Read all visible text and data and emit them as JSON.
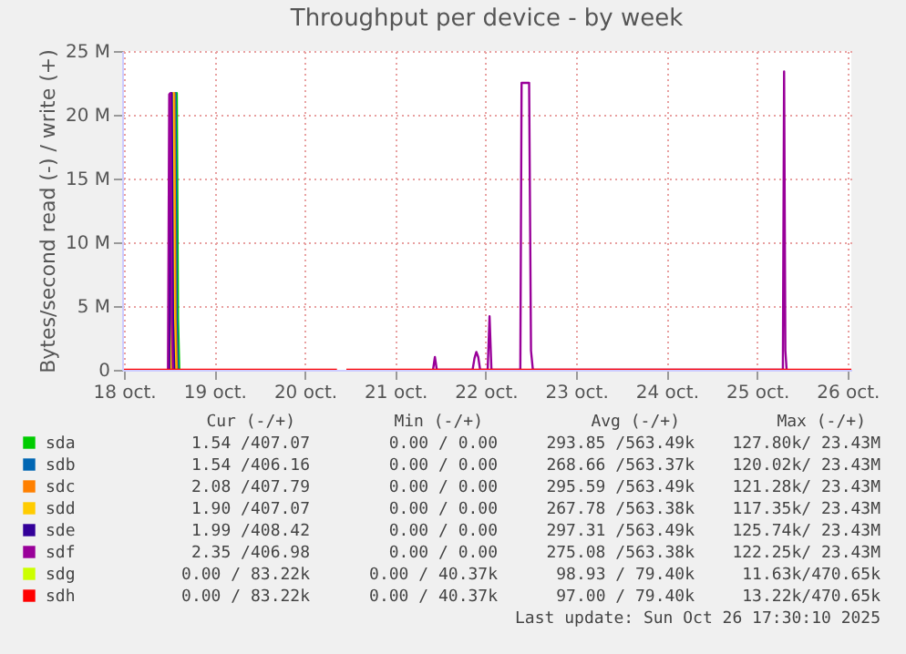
{
  "chart_data": {
    "type": "line",
    "title": "Throughput per device - by week",
    "ylabel": "Bytes/second read (-) / write (+)",
    "x": [
      "2025-10-18T00:00",
      "2025-10-18T11:40",
      "2025-10-18T12:00",
      "2025-10-18T12:20",
      "2025-10-18T12:40",
      "2025-10-18T13:00",
      "2025-10-18T13:20",
      "2025-10-18T13:40",
      "2025-10-18T14:00",
      "2025-10-18T14:20",
      "2025-10-18T14:40",
      "2025-10-20T08:30",
      "2025-10-20T09:30",
      "2025-10-20T11:00",
      "2025-10-21T10:00",
      "2025-10-21T10:30",
      "2025-10-21T11:00",
      "2025-10-21T20:30",
      "2025-10-21T21:00",
      "2025-10-21T21:30",
      "2025-10-21T22:00",
      "2025-10-21T22:30",
      "2025-10-22T00:30",
      "2025-10-22T01:00",
      "2025-10-22T01:30",
      "2025-10-22T09:10",
      "2025-10-22T09:30",
      "2025-10-22T11:30",
      "2025-10-22T12:00",
      "2025-10-22T12:30",
      "2025-10-25T06:50",
      "2025-10-25T07:10",
      "2025-10-25T07:30",
      "2025-10-25T07:50",
      "2025-10-26T01:00"
    ],
    "series": [
      {
        "name": "sda",
        "color": "#00cc00",
        "values": [
          null,
          null,
          null,
          null,
          null,
          null,
          0,
          21600000,
          21700000,
          4000000,
          0,
          null,
          null,
          null,
          null,
          null,
          null,
          null,
          null,
          null,
          null,
          null,
          null,
          null,
          null,
          null,
          null,
          null,
          null,
          null,
          null,
          null,
          null,
          null,
          null
        ]
      },
      {
        "name": "sdb",
        "color": "#0066b3",
        "values": [
          null,
          null,
          null,
          null,
          null,
          0,
          21600000,
          21700000,
          4000000,
          0,
          null,
          null,
          null,
          null,
          null,
          null,
          null,
          null,
          null,
          null,
          null,
          null,
          null,
          null,
          null,
          null,
          null,
          null,
          null,
          null,
          null,
          null,
          null,
          null,
          null
        ]
      },
      {
        "name": "sdc",
        "color": "#ff8000",
        "values": [
          null,
          null,
          null,
          null,
          0,
          21600000,
          21700000,
          4000000,
          0,
          null,
          null,
          null,
          null,
          null,
          null,
          null,
          null,
          null,
          null,
          null,
          null,
          null,
          null,
          null,
          null,
          null,
          null,
          null,
          null,
          null,
          null,
          null,
          null,
          null,
          null
        ]
      },
      {
        "name": "sdd",
        "color": "#ffcc00",
        "values": [
          null,
          null,
          null,
          0,
          21600000,
          21700000,
          4000000,
          0,
          null,
          null,
          null,
          null,
          null,
          null,
          null,
          null,
          null,
          null,
          null,
          null,
          null,
          null,
          null,
          null,
          null,
          null,
          null,
          null,
          null,
          null,
          null,
          null,
          null,
          null,
          null
        ]
      },
      {
        "name": "sde",
        "color": "#330099",
        "values": [
          null,
          null,
          0,
          21600000,
          21700000,
          4000000,
          0,
          null,
          null,
          null,
          null,
          null,
          null,
          null,
          null,
          null,
          null,
          null,
          null,
          null,
          null,
          null,
          null,
          null,
          null,
          null,
          null,
          null,
          null,
          null,
          null,
          null,
          null,
          null,
          null
        ]
      },
      {
        "name": "sdf",
        "color": "#990099",
        "values": [
          null,
          0,
          21600000,
          21700000,
          4000000,
          0,
          null,
          null,
          null,
          null,
          null,
          null,
          null,
          null,
          0,
          1000000,
          0,
          0,
          900000,
          1400000,
          1000000,
          0,
          0,
          4200000,
          0,
          0,
          22500000,
          22500000,
          1500000,
          0,
          0,
          23400000,
          1500000,
          0,
          null
        ]
      },
      {
        "name": "sdg",
        "color": "#ccff00",
        "values": [
          null,
          null,
          null,
          null,
          null,
          null,
          null,
          null,
          null,
          null,
          null,
          null,
          null,
          null,
          null,
          null,
          null,
          null,
          null,
          null,
          null,
          null,
          null,
          null,
          null,
          null,
          null,
          null,
          null,
          null,
          null,
          null,
          null,
          null,
          null
        ]
      },
      {
        "name": "sdh",
        "color": "#ff0000",
        "values": [
          0,
          0,
          0,
          0,
          0,
          0,
          0,
          0,
          0,
          0,
          0,
          0,
          null,
          0,
          0,
          0,
          0,
          0,
          0,
          0,
          0,
          0,
          0,
          0,
          0,
          0,
          0,
          0,
          0,
          0,
          0,
          0,
          0,
          0,
          0
        ]
      }
    ],
    "xlim": [
      "2025-10-17T23:30",
      "2025-10-26T01:00"
    ],
    "xticks": [
      {
        "value": "2025-10-18",
        "label": "18 oct."
      },
      {
        "value": "2025-10-19",
        "label": "19 oct."
      },
      {
        "value": "2025-10-20",
        "label": "20 oct."
      },
      {
        "value": "2025-10-21",
        "label": "21 oct."
      },
      {
        "value": "2025-10-22",
        "label": "22 oct."
      },
      {
        "value": "2025-10-23",
        "label": "23 oct."
      },
      {
        "value": "2025-10-24",
        "label": "24 oct."
      },
      {
        "value": "2025-10-25",
        "label": "25 oct."
      },
      {
        "value": "2025-10-26",
        "label": "26 oct."
      }
    ],
    "ylim": [
      0,
      25000000
    ],
    "yticks": [
      {
        "value": 0,
        "label": "0"
      },
      {
        "value": 5000000,
        "label": "5 M"
      },
      {
        "value": 10000000,
        "label": "10 M"
      },
      {
        "value": 15000000,
        "label": "15 M"
      },
      {
        "value": 20000000,
        "label": "20 M"
      },
      {
        "value": 25000000,
        "label": "25 M"
      }
    ],
    "grid": true,
    "legend": "bottom left",
    "line_style": "solid",
    "annotations": [
      "Cur (-/+)",
      "Min (-/+)",
      "Avg (-/+)",
      "Max (-/+)",
      "1.54 /407.07",
      "0.00 /  0.00",
      "293.85 /563.49k",
      "127.80k/ 23.43M",
      "1.54 /406.16",
      "0.00 /  0.00",
      "268.66 /563.37k",
      "120.02k/ 23.43M",
      "2.08 /407.79",
      "0.00 /  0.00",
      "295.59 /563.49k",
      "121.28k/ 23.43M",
      "1.90 /407.07",
      "0.00 /  0.00",
      "267.78 /563.38k",
      "117.35k/ 23.43M",
      "1.99 /408.42",
      "0.00 /  0.00",
      "297.31 /563.49k",
      "125.74k/ 23.43M",
      "2.35 /406.98",
      "0.00 /  0.00",
      "275.08 /563.38k",
      "122.25k/ 23.43M",
      "0.00 / 83.22k",
      "0.00 / 40.37k",
      "98.93 / 79.40k",
      "11.63k/470.65k",
      "0.00 / 83.22k",
      "0.00 / 40.37k",
      "97.00 / 79.40k",
      "13.22k/470.65k",
      "Last update: Sun Oct 26 17:30:10 2025"
    ]
  }
}
